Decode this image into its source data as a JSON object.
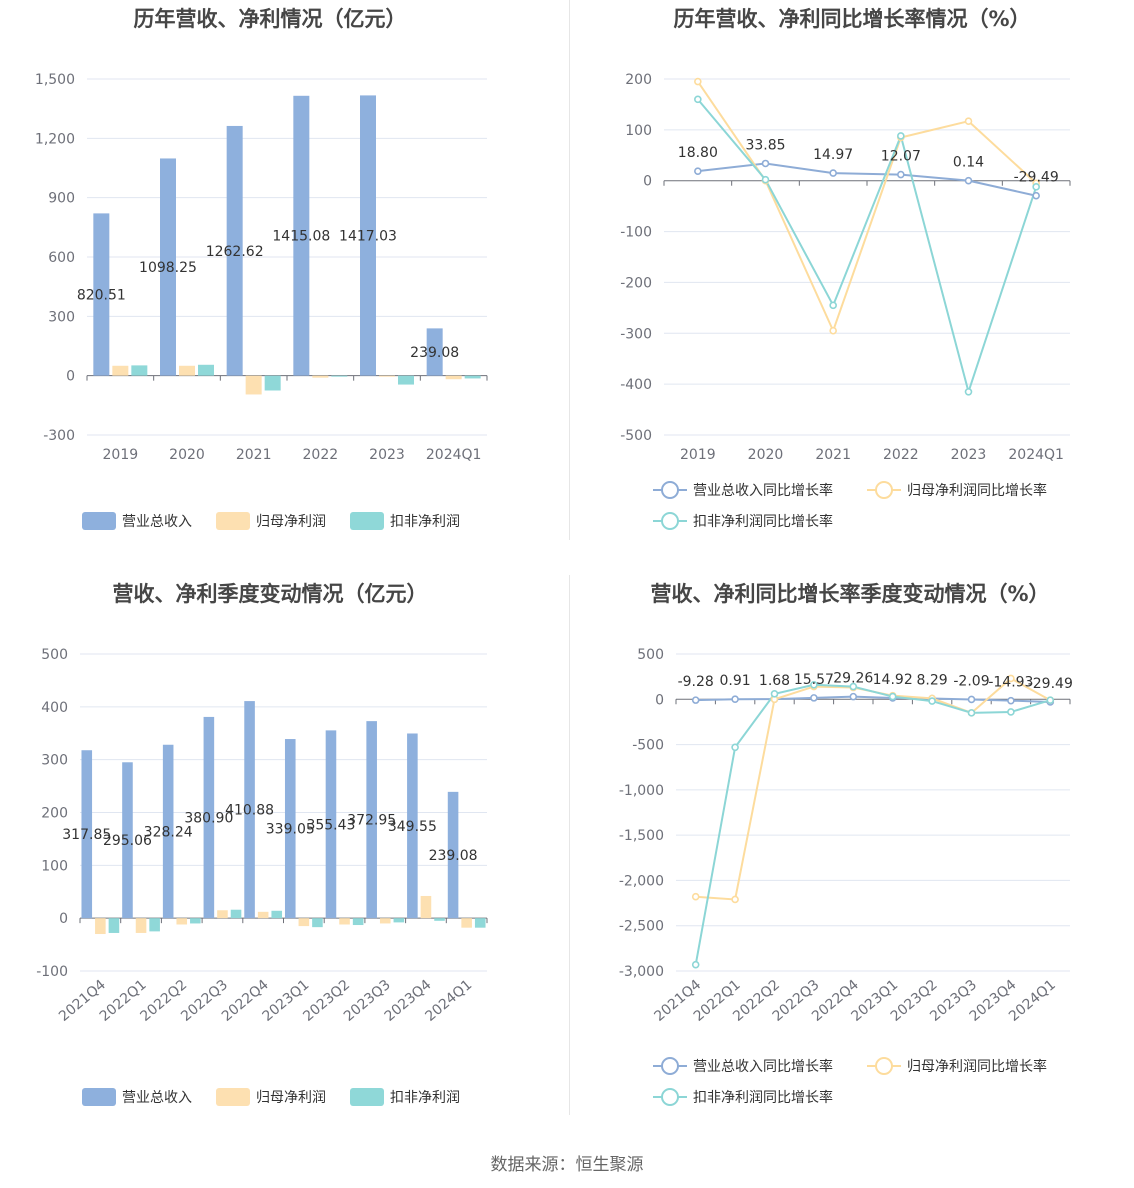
{
  "source": "数据来源：恒生聚源",
  "chart_data": [
    {
      "type": "bar",
      "title": "历年营收、净利情况（亿元）",
      "categories": [
        "2019",
        "2020",
        "2021",
        "2022",
        "2023",
        "2024Q1"
      ],
      "ylim": [
        -300,
        1500
      ],
      "yticks": [
        -300,
        0,
        300,
        600,
        900,
        1200,
        1500
      ],
      "ytick_labels": [
        "-300",
        "0",
        "300",
        "600",
        "900",
        "1,200",
        "1,500"
      ],
      "grid": true,
      "legend_position": "bottom",
      "series": [
        {
          "name": "营业总收入",
          "color": "#8eb0dd",
          "values": [
            820.51,
            1098.25,
            1262.62,
            1415.08,
            1417.03,
            239.08
          ],
          "labels": [
            "820.51",
            "1098.25",
            "1262.62",
            "1415.08",
            "1417.03",
            "239.08"
          ]
        },
        {
          "name": "归母净利润",
          "color": "#fde0b1",
          "values": [
            50,
            50,
            -95,
            -10,
            -3,
            -18
          ]
        },
        {
          "name": "扣非净利润",
          "color": "#8fd8d8",
          "values": [
            52,
            55,
            -75,
            -5,
            -45,
            -14
          ]
        }
      ]
    },
    {
      "type": "line",
      "title": "历年营收、净利同比增长率情况（%）",
      "categories": [
        "2019",
        "2020",
        "2021",
        "2022",
        "2023",
        "2024Q1"
      ],
      "ylim": [
        -500,
        200
      ],
      "yticks": [
        -500,
        -400,
        -300,
        -200,
        -100,
        0,
        100,
        200
      ],
      "ytick_labels": [
        "-500",
        "-400",
        "-300",
        "-200",
        "-100",
        "0",
        "100",
        "200"
      ],
      "grid": true,
      "legend_position": "bottom",
      "series": [
        {
          "name": "营业总收入同比增长率",
          "color": "#8eacd6",
          "values": [
            18.8,
            33.85,
            14.97,
            12.07,
            0.14,
            -29.49
          ],
          "labels": [
            "18.80",
            "33.85",
            "14.97",
            "12.07",
            "0.14",
            "-29.49"
          ]
        },
        {
          "name": "归母净利润同比增长率",
          "color": "#fddc9d",
          "values": [
            195,
            0,
            -295,
            85,
            117,
            -5
          ]
        },
        {
          "name": "扣非净利润同比增长率",
          "color": "#8cd6d6",
          "values": [
            160,
            2,
            -245,
            88,
            -415,
            -12
          ]
        }
      ]
    },
    {
      "type": "bar",
      "title": "营收、净利季度变动情况（亿元）",
      "categories": [
        "2021Q4",
        "2022Q1",
        "2022Q2",
        "2022Q3",
        "2022Q4",
        "2023Q1",
        "2023Q2",
        "2023Q3",
        "2023Q4",
        "2024Q1"
      ],
      "ylim": [
        -100,
        500
      ],
      "yticks": [
        -100,
        0,
        100,
        200,
        300,
        400,
        500
      ],
      "ytick_labels": [
        "-100",
        "0",
        "100",
        "200",
        "300",
        "400",
        "500"
      ],
      "grid": true,
      "legend_position": "bottom",
      "series": [
        {
          "name": "营业总收入",
          "color": "#8eb0dd",
          "values": [
            317.85,
            295.06,
            328.24,
            380.9,
            410.88,
            339.05,
            355.43,
            372.95,
            349.55,
            239.08
          ],
          "labels": [
            "317.85",
            "295.06",
            "328.24",
            "380.90",
            "410.88",
            "339.05",
            "355.43",
            "372.95",
            "349.55",
            "239.08"
          ]
        },
        {
          "name": "归母净利润",
          "color": "#fde0b1",
          "values": [
            -30,
            -28,
            -12,
            15,
            12,
            -15,
            -12,
            -10,
            42,
            -18
          ]
        },
        {
          "name": "扣非净利润",
          "color": "#8fd8d8",
          "values": [
            -28,
            -25,
            -10,
            16,
            14,
            -17,
            -13,
            -8,
            -5,
            -18
          ]
        }
      ]
    },
    {
      "type": "line",
      "title": "营收、净利同比增长率季度变动情况（%）",
      "categories": [
        "2021Q4",
        "2022Q1",
        "2022Q2",
        "2022Q3",
        "2022Q4",
        "2023Q1",
        "2023Q2",
        "2023Q3",
        "2023Q4",
        "2024Q1"
      ],
      "ylim": [
        -3000,
        500
      ],
      "yticks": [
        -3000,
        -2500,
        -2000,
        -1500,
        -1000,
        -500,
        0,
        500
      ],
      "ytick_labels": [
        "-3,000",
        "-2,500",
        "-2,000",
        "-1,500",
        "-1,000",
        "-500",
        "0",
        "500"
      ],
      "grid": true,
      "legend_position": "bottom",
      "series": [
        {
          "name": "营业总收入同比增长率",
          "color": "#8eacd6",
          "values": [
            -9.28,
            0.91,
            1.68,
            15.57,
            29.26,
            14.92,
            8.29,
            -2.09,
            -14.93,
            -29.49
          ],
          "labels": [
            "-9.28",
            "0.91",
            "1.68",
            "15.57",
            "29.26",
            "14.92",
            "8.29",
            "-2.09",
            "-14.93",
            "-29.49"
          ]
        },
        {
          "name": "归母净利润同比增长率",
          "color": "#fddc9d",
          "values": [
            -2180,
            -2210,
            0,
            140,
            130,
            40,
            10,
            -150,
            230,
            -10
          ]
        },
        {
          "name": "扣非净利润同比增长率",
          "color": "#8cd6d6",
          "values": [
            -2930,
            -530,
            60,
            160,
            140,
            30,
            -20,
            -150,
            -140,
            -10
          ]
        }
      ]
    }
  ]
}
